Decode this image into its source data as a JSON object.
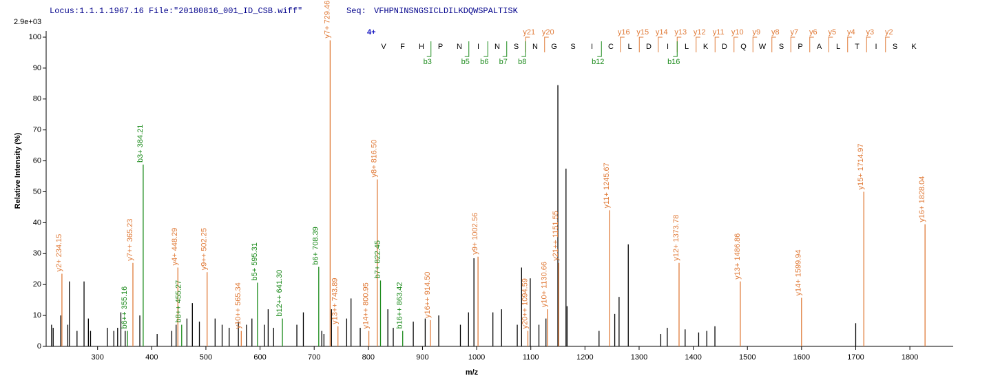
{
  "header": {
    "locus": "Locus:1.1.1.1967.16 File:\"20180816_001_ID_CSB.wiff\"",
    "seq_label": "Seq:",
    "seq": "VFHPNINSNGSICLDILKDQWSPALTISK"
  },
  "chart_data": {
    "type": "spectrum",
    "scale_label": "2.9e+03",
    "x_label": "m/z",
    "y_label": "Relative  Intensity (%)",
    "xlim": [
      205,
      1880
    ],
    "xticks": [
      300,
      400,
      500,
      600,
      700,
      800,
      900,
      1000,
      1100,
      1200,
      1300,
      1400,
      1500,
      1600,
      1700,
      1800
    ],
    "ylim": [
      0,
      102
    ],
    "yticks": [
      0,
      10,
      20,
      30,
      40,
      50,
      60,
      70,
      80,
      90,
      100
    ],
    "sequence": {
      "charge": "4+",
      "residues": [
        "V",
        "F",
        "H",
        "P",
        "N",
        "I",
        "N",
        "S",
        "N",
        "G",
        "S",
        "I",
        "C",
        "L",
        "D",
        "I",
        "L",
        "K",
        "D",
        "Q",
        "W",
        "S",
        "P",
        "A",
        "L",
        "T",
        "I",
        "S",
        "K"
      ],
      "y_ions": [
        "y21",
        "y20",
        "y16",
        "y15",
        "y14",
        "y13",
        "y12",
        "y11",
        "y10",
        "y9",
        "y8",
        "y7",
        "y6",
        "y5",
        "y4",
        "y3",
        "y2"
      ],
      "b_ions": [
        "b3",
        "b5",
        "b6",
        "b7",
        "b8",
        "b12",
        "b16"
      ],
      "y_color": "#e07b39",
      "b_color": "#1a8a1a"
    },
    "series": [
      {
        "color": "#000000",
        "x": [
          215,
          218,
          232,
          245,
          248,
          262,
          275,
          283,
          287,
          318,
          330,
          337,
          343,
          351,
          378,
          410,
          437,
          445,
          465,
          475,
          488,
          517,
          530,
          543,
          560,
          575,
          585,
          608,
          615,
          625,
          668,
          680,
          714,
          718,
          732,
          760,
          768,
          785,
          836,
          846,
          883,
          905,
          930,
          970,
          985,
          995,
          1030,
          1046,
          1075,
          1083,
          1099,
          1115,
          1128,
          1150,
          1165,
          1167,
          1226,
          1255,
          1263,
          1280,
          1340,
          1352,
          1385,
          1410,
          1425,
          1440,
          1700
        ],
        "values": [
          7,
          6,
          10,
          7,
          21,
          5,
          21,
          9,
          5,
          6,
          5,
          6,
          11,
          5,
          10,
          4,
          5,
          7,
          9,
          14,
          8,
          9,
          7,
          6,
          8,
          7,
          9,
          7,
          12,
          6,
          7,
          11,
          5,
          4,
          12,
          9,
          15.5,
          6,
          12,
          6,
          8,
          9,
          10,
          7,
          11,
          28.5,
          11,
          12,
          7,
          25.5,
          22,
          7,
          9,
          84.5,
          57.5,
          13,
          5,
          10.5,
          16,
          33,
          4,
          6,
          5.5,
          4.5,
          5,
          6.5,
          7.5
        ]
      },
      {
        "color": "#e07b39",
        "x": [
          234.15,
          365.23,
          448.29,
          502.25,
          565.34,
          729.46,
          743.89,
          800.95,
          816.5,
          914.5,
          1002.56,
          1094.59,
          1130.66,
          1151.55,
          1245.67,
          1373.78,
          1486.86,
          1599.94,
          1714.97,
          1828.04
        ],
        "values": [
          23.5,
          27,
          25.5,
          24,
          5,
          99,
          6.5,
          5,
          54,
          8.5,
          29,
          5,
          12,
          27,
          44,
          27,
          21,
          15.7,
          50,
          39.5
        ],
        "value_labels": [
          "y2+ 234.15",
          "y7++ 365.23",
          "y4+ 448.29",
          "y9++ 502.25",
          "y10++ 565.34",
          "y7+ 729.46",
          "y13++ 743.89",
          "y14++ 800.95",
          "y8+ 816.50",
          "y16++ 914.50",
          "y9+ 1002.56",
          "y20++ 1094.59",
          "y10+ 1130.66",
          "y21++ 1151.55",
          "y11+ 1245.67",
          "y12+ 1373.78",
          "y13+ 1486.86",
          "y14+ 1599.94",
          "y15+ 1714.97",
          "y16+ 1828.04"
        ]
      },
      {
        "color": "#1a8a1a",
        "x": [
          355.16,
          384.21,
          455.27,
          595.31,
          641.3,
          708.39,
          822.45,
          863.42
        ],
        "values": [
          5,
          58.8,
          7,
          20.6,
          9,
          25.7,
          21.3,
          5
        ],
        "value_labels": [
          "b6++ 355.16",
          "b3+ 384.21",
          "b8++ 455.27",
          "b5+ 595.31",
          "b12++ 641.30",
          "b6+ 708.39",
          "b7+ 822.45",
          "b16++ 863.42"
        ]
      }
    ]
  }
}
